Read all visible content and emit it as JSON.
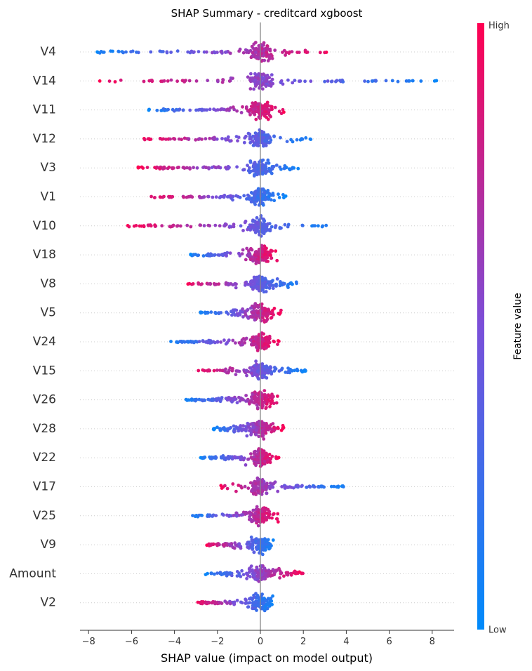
{
  "chart_data": {
    "type": "scatter",
    "subtype": "shap-beeswarm",
    "title": "SHAP Summary - creditcard xgboost",
    "xlabel": "SHAP value (impact on model output)",
    "ylabel": "",
    "xlim": [
      -8.4,
      9.1
    ],
    "xticks": [
      -8,
      -6,
      -4,
      -2,
      0,
      2,
      4,
      6,
      8
    ],
    "xtick_labels": [
      "−8",
      "−6",
      "−4",
      "−2",
      "0",
      "2",
      "4",
      "6",
      "8"
    ],
    "colorbar": {
      "label": "Feature value",
      "high_label": "High",
      "low_label": "Low",
      "high_color": "#ff0051",
      "low_color": "#008bfb"
    },
    "grid": "dotted horizontal per feature",
    "features": [
      {
        "name": "V4",
        "min": -7.7,
        "max": 3.2,
        "low_side": "left"
      },
      {
        "name": "V14",
        "min": -7.5,
        "max": 8.3,
        "low_side": "right"
      },
      {
        "name": "V11",
        "min": -5.2,
        "max": 1.1,
        "low_side": "left"
      },
      {
        "name": "V12",
        "min": -5.5,
        "max": 2.5,
        "low_side": "right"
      },
      {
        "name": "V3",
        "min": -5.7,
        "max": 1.9,
        "low_side": "right"
      },
      {
        "name": "V1",
        "min": -5.3,
        "max": 1.2,
        "low_side": "right"
      },
      {
        "name": "V10",
        "min": -6.2,
        "max": 3.3,
        "low_side": "right"
      },
      {
        "name": "V18",
        "min": -3.3,
        "max": 0.8,
        "low_side": "left"
      },
      {
        "name": "V8",
        "min": -3.5,
        "max": 1.9,
        "low_side": "right"
      },
      {
        "name": "V5",
        "min": -2.8,
        "max": 1.0,
        "low_side": "left"
      },
      {
        "name": "V24",
        "min": -4.2,
        "max": 0.9,
        "low_side": "left"
      },
      {
        "name": "V15",
        "min": -3.0,
        "max": 2.1,
        "low_side": "right"
      },
      {
        "name": "V26",
        "min": -3.5,
        "max": 1.0,
        "low_side": "left"
      },
      {
        "name": "V28",
        "min": -2.2,
        "max": 1.1,
        "low_side": "left"
      },
      {
        "name": "V22",
        "min": -2.8,
        "max": 0.9,
        "low_side": "left"
      },
      {
        "name": "V17",
        "min": -2.2,
        "max": 3.9,
        "low_side": "right"
      },
      {
        "name": "V25",
        "min": -3.2,
        "max": 0.9,
        "low_side": "left"
      },
      {
        "name": "V9",
        "min": -2.5,
        "max": 0.6,
        "low_side": "right"
      },
      {
        "name": "Amount",
        "min": -2.6,
        "max": 2.0,
        "low_side": "left"
      },
      {
        "name": "V2",
        "min": -3.0,
        "max": 0.6,
        "low_side": "right"
      }
    ]
  }
}
